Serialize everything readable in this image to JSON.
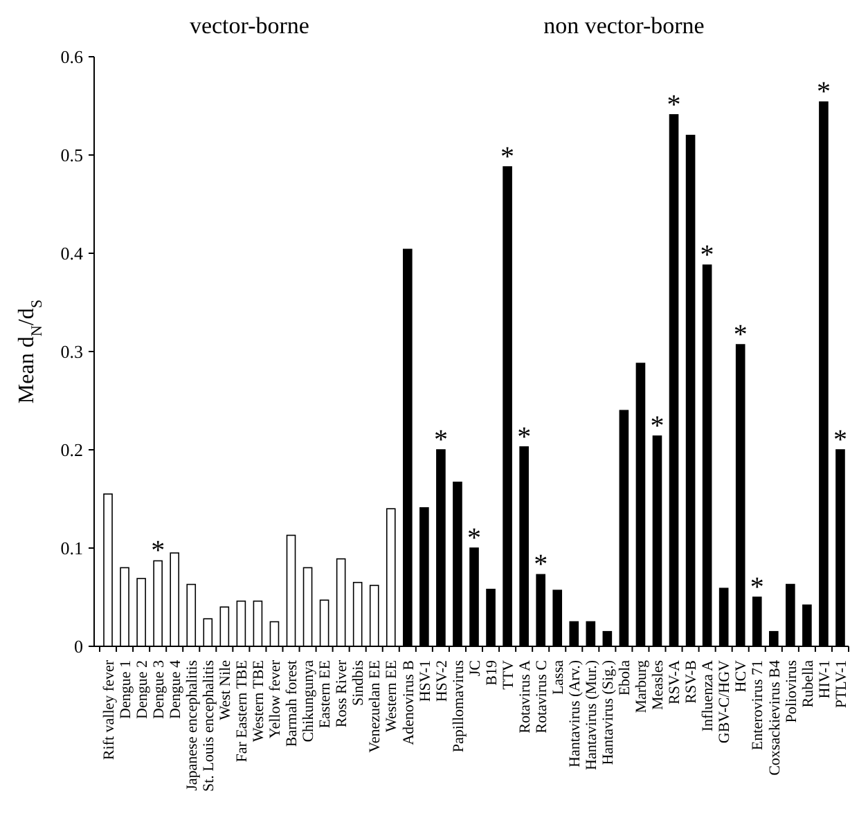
{
  "chart_data": {
    "type": "bar",
    "ylabel": "Mean d$_{N}$/d$_{S}$",
    "categories": [
      "Rift valley fever",
      "Dengue 1",
      "Dengue 2",
      "Dengue 3",
      "Dengue 4",
      "Japanese encephalitis",
      "St. Louis encephalitis",
      "West Nile",
      "Far Eastern TBE",
      "Western TBE",
      "Yellow fever",
      "Barmah forest",
      "Chikungunya",
      "Eastern EE",
      "Ross River",
      "Sindbis",
      "Venezuelan EE",
      "Western EE",
      "Adenovirus B",
      "HSV-1",
      "HSV-2",
      "Papillomavirus",
      "JC",
      "B19",
      "TTV",
      "Rotavirus A",
      "Rotavirus C",
      "Lassa",
      "Hantavirus (Arv.)",
      "Hantavirus (Mur.)",
      "Hantavirus (Sig.)",
      "Ebola",
      "Marburg",
      "Measles",
      "RSV-A",
      "RSV-B",
      "Influenza A",
      "GBV-C/HGV",
      "HCV",
      "Enterovirus 71",
      "Coxsackievirus B4",
      "Poliovirus",
      "Rubella",
      "HIV-1",
      "PTLV-1"
    ],
    "values": [
      0.155,
      0.08,
      0.069,
      0.087,
      0.095,
      0.063,
      0.028,
      0.04,
      0.046,
      0.046,
      0.025,
      0.113,
      0.08,
      0.047,
      0.089,
      0.065,
      0.062,
      0.14,
      0.404,
      0.141,
      0.2,
      0.167,
      0.1,
      0.058,
      0.488,
      0.203,
      0.073,
      0.057,
      0.025,
      0.025,
      0.015,
      0.24,
      0.288,
      0.214,
      0.541,
      0.52,
      0.388,
      0.059,
      0.307,
      0.05,
      0.015,
      0.063,
      0.042,
      0.554,
      0.2
    ],
    "colors": [
      "#ffffff",
      "#ffffff",
      "#ffffff",
      "#ffffff",
      "#ffffff",
      "#ffffff",
      "#ffffff",
      "#ffffff",
      "#ffffff",
      "#ffffff",
      "#ffffff",
      "#ffffff",
      "#ffffff",
      "#ffffff",
      "#ffffff",
      "#ffffff",
      "#ffffff",
      "#ffffff",
      "#000000",
      "#000000",
      "#000000",
      "#000000",
      "#000000",
      "#000000",
      "#000000",
      "#000000",
      "#000000",
      "#000000",
      "#000000",
      "#000000",
      "#000000",
      "#000000",
      "#000000",
      "#000000",
      "#000000",
      "#000000",
      "#000000",
      "#000000",
      "#000000",
      "#000000",
      "#000000",
      "#000000",
      "#000000",
      "#000000",
      "#000000"
    ],
    "ylim": [
      0,
      0.6
    ],
    "yticks": [
      0,
      0.1,
      0.2,
      0.3,
      0.4,
      0.5,
      0.6
    ],
    "grid": false,
    "annotations": [
      "vector-borne",
      "non vector-borne",
      {
        "text": "*",
        "x": "Dengue 3",
        "y": 0.087
      },
      {
        "text": "*",
        "x": "HSV-2",
        "y": 0.2
      },
      {
        "text": "*",
        "x": "JC",
        "y": 0.1
      },
      {
        "text": "*",
        "x": "TTV",
        "y": 0.488
      },
      {
        "text": "*",
        "x": "Rotavirus A",
        "y": 0.203
      },
      {
        "text": "*",
        "x": "Rotavirus C",
        "y": 0.073
      },
      {
        "text": "*",
        "x": "Measles",
        "y": 0.214
      },
      {
        "text": "*",
        "x": "RSV-A",
        "y": 0.541
      },
      {
        "text": "*",
        "x": "Influenza A",
        "y": 0.388
      },
      {
        "text": "*",
        "x": "HCV",
        "y": 0.307
      },
      {
        "text": "*",
        "x": "Enterovirus 71",
        "y": 0.05
      },
      {
        "text": "*",
        "x": "HIV-1",
        "y": 0.554
      },
      {
        "text": "*",
        "x": "PTLV-1",
        "y": 0.2
      }
    ]
  }
}
